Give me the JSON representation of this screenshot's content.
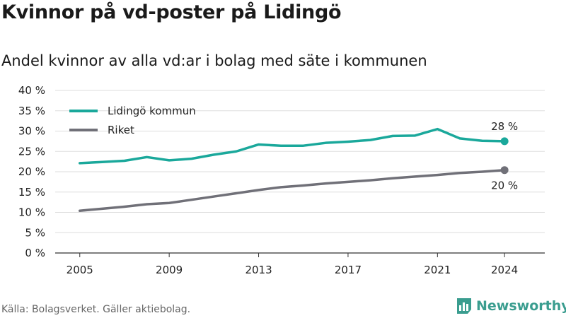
{
  "title": "Kvinnor på vd-poster på Lidingö",
  "subtitle": "Andel kvinnor av alla vd:ar i bolag med säte i kommunen",
  "source": "Källa: Bolagsverket. Gäller aktiebolag.",
  "brand": "Newsworthy",
  "colors": {
    "lidingo": "#1aa89b",
    "riket": "#707078",
    "grid": "#dddddd",
    "brand": "#3a9d8f"
  },
  "chart_data": {
    "type": "line",
    "title": "Kvinnor på vd-poster på Lidingö",
    "subtitle": "Andel kvinnor av alla vd:ar i bolag med säte i kommunen",
    "x": [
      2005,
      2006,
      2007,
      2008,
      2009,
      2010,
      2011,
      2012,
      2013,
      2014,
      2015,
      2016,
      2017,
      2018,
      2019,
      2020,
      2021,
      2022,
      2023,
      2024
    ],
    "x_ticks": [
      "2005",
      "2009",
      "2013",
      "2017",
      "2021",
      "2024"
    ],
    "y_ticks": [
      "0 %",
      "5 %",
      "10 %",
      "15 %",
      "20 %",
      "25 %",
      "30 %",
      "35 %",
      "40 %"
    ],
    "ylim": [
      0,
      40
    ],
    "grid": true,
    "legend_position": "top-left",
    "series": [
      {
        "name": "Lidingö kommun",
        "values": [
          22.1,
          22.4,
          22.7,
          23.6,
          22.8,
          23.2,
          24.2,
          25.0,
          26.7,
          26.4,
          26.4,
          27.1,
          27.4,
          27.8,
          28.8,
          28.9,
          30.5,
          28.2,
          27.6,
          27.5
        ],
        "end_label": "28 %"
      },
      {
        "name": "Riket",
        "values": [
          10.4,
          10.9,
          11.4,
          12.0,
          12.3,
          13.1,
          13.9,
          14.7,
          15.5,
          16.2,
          16.6,
          17.1,
          17.5,
          17.9,
          18.4,
          18.8,
          19.2,
          19.7,
          20.0,
          20.4
        ],
        "end_label": "20 %"
      }
    ]
  }
}
